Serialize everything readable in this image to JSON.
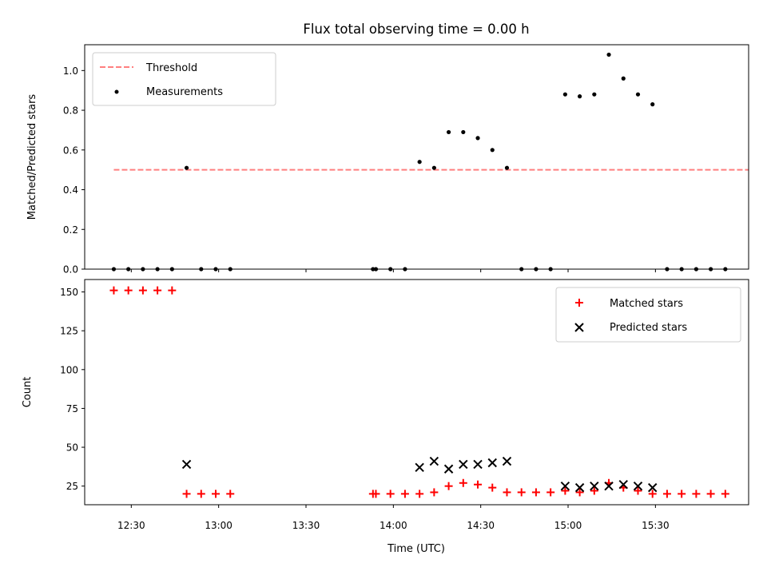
{
  "chart_data": [
    {
      "type": "scatter",
      "title": "Flux total observing time = 0.00 h",
      "xlabel": "",
      "ylabel": "Matched/Predicted stars",
      "xlim": [
        "12:14",
        "16:02"
      ],
      "ylim": [
        0,
        1.13
      ],
      "yticks": [
        0.0,
        0.2,
        0.4,
        0.6,
        0.8,
        1.0
      ],
      "ytick_labels": [
        "0.0",
        "0.2",
        "0.4",
        "0.6",
        "0.8",
        "1.0"
      ],
      "legend_position": "top-left",
      "series": [
        {
          "name": "Threshold",
          "style": "dashed-line",
          "color": "#ff7f7f",
          "x": [
            "12:24",
            "16:02"
          ],
          "values": [
            0.5,
            0.5
          ]
        },
        {
          "name": "Measurements",
          "style": "dot",
          "color": "#000000",
          "x": [
            "12:24",
            "12:29",
            "12:34",
            "12:39",
            "12:44",
            "12:49",
            "12:54",
            "12:59",
            "13:04",
            "13:53",
            "13:54",
            "13:59",
            "14:04",
            "14:09",
            "14:14",
            "14:19",
            "14:24",
            "14:29",
            "14:34",
            "14:39",
            "14:44",
            "14:49",
            "14:54",
            "14:59",
            "15:04",
            "15:09",
            "15:14",
            "15:19",
            "15:24",
            "15:29",
            "15:34",
            "15:39",
            "15:44",
            "15:49",
            "15:54"
          ],
          "values": [
            0,
            0,
            0,
            0,
            0,
            0.51,
            0,
            0,
            0,
            0,
            0,
            0,
            0,
            0.54,
            0.51,
            0.69,
            0.69,
            0.66,
            0.6,
            0.51,
            0,
            0,
            0,
            0.88,
            0.87,
            0.88,
            1.08,
            0.96,
            0.88,
            0.83,
            0,
            0,
            0,
            0,
            0
          ]
        }
      ]
    },
    {
      "type": "scatter",
      "title": "",
      "xlabel": "Time (UTC)",
      "ylabel": "Count",
      "xlim": [
        "12:14",
        "16:02"
      ],
      "ylim": [
        13,
        158
      ],
      "yticks": [
        25,
        50,
        75,
        100,
        125,
        150
      ],
      "ytick_labels": [
        "25",
        "50",
        "75",
        "100",
        "125",
        "150"
      ],
      "xticks": [
        "12:30",
        "13:00",
        "13:30",
        "14:00",
        "14:30",
        "15:00",
        "15:30"
      ],
      "legend_position": "top-right",
      "series": [
        {
          "name": "Matched stars",
          "marker": "plus",
          "color": "#ff0000",
          "x": [
            "12:24",
            "12:29",
            "12:34",
            "12:39",
            "12:44",
            "12:49",
            "12:54",
            "12:59",
            "13:04",
            "13:53",
            "13:54",
            "13:59",
            "14:04",
            "14:09",
            "14:14",
            "14:19",
            "14:24",
            "14:29",
            "14:34",
            "14:39",
            "14:44",
            "14:49",
            "14:54",
            "14:59",
            "15:04",
            "15:09",
            "15:14",
            "15:19",
            "15:24",
            "15:29",
            "15:34",
            "15:39",
            "15:44",
            "15:49",
            "15:54"
          ],
          "values": [
            151,
            151,
            151,
            151,
            151,
            20,
            20,
            20,
            20,
            20,
            20,
            20,
            20,
            20,
            21,
            25,
            27,
            26,
            24,
            21,
            21,
            21,
            21,
            22,
            21,
            22,
            27,
            24,
            22,
            20,
            20,
            20,
            20,
            20,
            20
          ]
        },
        {
          "name": "Predicted stars",
          "marker": "x",
          "color": "#000000",
          "x": [
            "12:49",
            "14:09",
            "14:14",
            "14:19",
            "14:24",
            "14:29",
            "14:34",
            "14:39",
            "14:59",
            "15:04",
            "15:09",
            "15:14",
            "15:19",
            "15:24",
            "15:29"
          ],
          "values": [
            39,
            37,
            41,
            36,
            39,
            39,
            40,
            41,
            25,
            24,
            25,
            25,
            26,
            25,
            24
          ]
        }
      ]
    }
  ]
}
